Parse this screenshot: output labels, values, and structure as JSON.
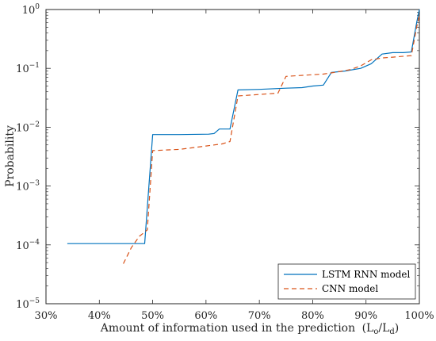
{
  "chart_data": {
    "type": "line",
    "title": "",
    "xlabel": "Amount of information used in the prediction",
    "xlabel_math": "(L",
    "xlabel_sub1": "o",
    "xlabel_mid": "/L",
    "xlabel_sub2": "d",
    "xlabel_end": ")",
    "ylabel": "Probability",
    "xlim": [
      30,
      100
    ],
    "ylim_log10": [
      -5,
      0
    ],
    "yscale": "log",
    "grid": false,
    "legend_position": "bottom-right",
    "xticks": [
      30,
      40,
      50,
      60,
      70,
      80,
      90,
      100
    ],
    "xtick_labels": [
      "30%",
      "40%",
      "50%",
      "60%",
      "70%",
      "80%",
      "90%",
      "100%"
    ],
    "ytick_exponents": [
      -5,
      -4,
      -3,
      -2,
      -1,
      0
    ],
    "ytick_labels": [
      {
        "base": "10",
        "exp": "−5"
      },
      {
        "base": "10",
        "exp": "−4"
      },
      {
        "base": "10",
        "exp": "−3"
      },
      {
        "base": "10",
        "exp": "−2"
      },
      {
        "base": "10",
        "exp": "−1"
      },
      {
        "base": "10",
        "exp": "0"
      }
    ],
    "series": [
      {
        "name": "LSTM RNN model",
        "color": "#0072BD",
        "style": "solid",
        "points": [
          [
            34,
            0.000105
          ],
          [
            40,
            0.000105
          ],
          [
            45,
            0.000105
          ],
          [
            48.5,
            0.000105
          ],
          [
            50,
            0.0075
          ],
          [
            55,
            0.0075
          ],
          [
            60.5,
            0.0076
          ],
          [
            61.5,
            0.0078
          ],
          [
            62.5,
            0.0093
          ],
          [
            64.5,
            0.0093
          ],
          [
            66,
            0.043
          ],
          [
            70,
            0.044
          ],
          [
            75,
            0.046
          ],
          [
            78,
            0.047
          ],
          [
            80,
            0.05
          ],
          [
            82,
            0.052
          ],
          [
            83.5,
            0.085
          ],
          [
            86,
            0.09
          ],
          [
            89,
            0.1
          ],
          [
            91,
            0.12
          ],
          [
            93,
            0.175
          ],
          [
            95,
            0.185
          ],
          [
            97,
            0.185
          ],
          [
            98.5,
            0.19
          ],
          [
            99.5,
            0.6
          ],
          [
            100,
            1.0
          ]
        ]
      },
      {
        "name": "CNN model",
        "color": "#D95319",
        "style": "dashed",
        "points": [
          [
            44.5,
            4.8e-05
          ],
          [
            46,
            9e-05
          ],
          [
            47.5,
            0.00014
          ],
          [
            49,
            0.00018
          ],
          [
            50,
            0.004
          ],
          [
            55,
            0.0042
          ],
          [
            60,
            0.0048
          ],
          [
            63,
            0.0052
          ],
          [
            64.5,
            0.0057
          ],
          [
            66,
            0.034
          ],
          [
            70,
            0.036
          ],
          [
            73.5,
            0.038
          ],
          [
            75,
            0.073
          ],
          [
            80,
            0.078
          ],
          [
            82,
            0.08
          ],
          [
            84,
            0.085
          ],
          [
            87,
            0.095
          ],
          [
            89,
            0.11
          ],
          [
            91,
            0.14
          ],
          [
            93,
            0.15
          ],
          [
            95,
            0.155
          ],
          [
            98.5,
            0.165
          ],
          [
            99.5,
            0.5
          ],
          [
            100,
            0.8
          ]
        ]
      }
    ]
  }
}
